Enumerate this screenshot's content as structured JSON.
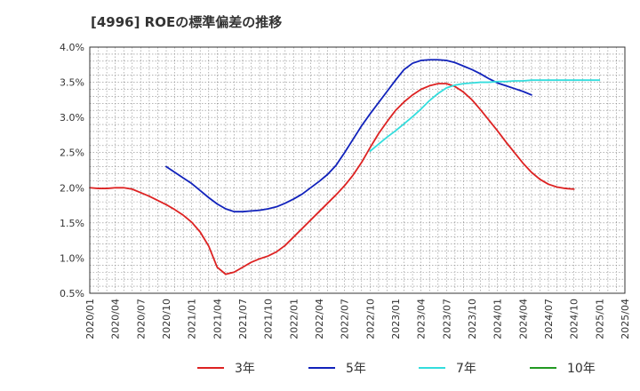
{
  "chart_data": {
    "type": "line",
    "title": "[4996]  ROEの標準偏差の推移",
    "xlabel": "",
    "ylabel": "",
    "ylim": [
      0.5,
      4.0
    ],
    "yticks": [
      "0.5%",
      "1.0%",
      "1.5%",
      "2.0%",
      "2.5%",
      "3.0%",
      "3.5%",
      "4.0%"
    ],
    "x_start": "2020/01",
    "x_end": "2025/04",
    "xticks": [
      "2020/01",
      "2020/04",
      "2020/07",
      "2020/10",
      "2021/01",
      "2021/04",
      "2021/07",
      "2021/10",
      "2022/01",
      "2022/04",
      "2022/07",
      "2022/10",
      "2023/01",
      "2023/04",
      "2023/07",
      "2023/10",
      "2024/01",
      "2024/04",
      "2024/07",
      "2024/10",
      "2025/01",
      "2025/04"
    ],
    "grid": true,
    "legend_position": "bottom",
    "series": [
      {
        "name": "3年",
        "color": "#dd2222",
        "start": "2020/01",
        "values": [
          2.0,
          1.99,
          1.99,
          2.0,
          2.0,
          1.98,
          1.93,
          1.88,
          1.82,
          1.76,
          1.69,
          1.61,
          1.51,
          1.37,
          1.17,
          0.87,
          0.77,
          0.8,
          0.87,
          0.94,
          0.99,
          1.03,
          1.09,
          1.18,
          1.3,
          1.42,
          1.54,
          1.66,
          1.78,
          1.9,
          2.03,
          2.18,
          2.36,
          2.57,
          2.77,
          2.94,
          3.1,
          3.22,
          3.32,
          3.4,
          3.45,
          3.48,
          3.48,
          3.44,
          3.36,
          3.25,
          3.11,
          2.96,
          2.81,
          2.65,
          2.5,
          2.35,
          2.22,
          2.12,
          2.05,
          2.01,
          1.99,
          1.98
        ]
      },
      {
        "name": "5年",
        "color": "#1122bb",
        "start": "2020/10",
        "values": [
          2.3,
          2.22,
          2.14,
          2.06,
          1.96,
          1.86,
          1.77,
          1.7,
          1.66,
          1.66,
          1.67,
          1.68,
          1.7,
          1.73,
          1.78,
          1.84,
          1.91,
          2.0,
          2.09,
          2.19,
          2.32,
          2.5,
          2.69,
          2.88,
          3.05,
          3.21,
          3.37,
          3.53,
          3.68,
          3.77,
          3.81,
          3.82,
          3.82,
          3.81,
          3.78,
          3.73,
          3.68,
          3.62,
          3.55,
          3.49,
          3.45,
          3.41,
          3.37,
          3.32
        ]
      },
      {
        "name": "7年",
        "color": "#33dddd",
        "start": "2022/10",
        "values": [
          2.52,
          2.62,
          2.72,
          2.81,
          2.91,
          3.01,
          3.12,
          3.24,
          3.34,
          3.42,
          3.46,
          3.48,
          3.49,
          3.5,
          3.5,
          3.51,
          3.51,
          3.52,
          3.52,
          3.53,
          3.53,
          3.53,
          3.53,
          3.53,
          3.53,
          3.53,
          3.53,
          3.53
        ]
      },
      {
        "name": "10年",
        "color": "#229922",
        "start": "2025/01",
        "values": []
      }
    ]
  }
}
